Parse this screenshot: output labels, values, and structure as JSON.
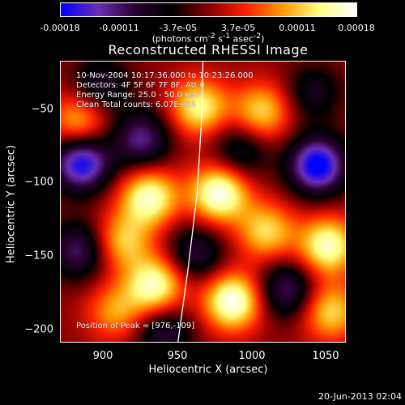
{
  "colorbar": {
    "ticks": [
      "-0.00018",
      "-0.00011",
      "-3.7e-05",
      "3.7e-05",
      "0.00011",
      "0.00018"
    ],
    "units_html": "(photons cm<sup>-2</sup> s<sup>-1</sup> asec<sup>-2</sup>)",
    "range": [
      -0.00018,
      0.00018
    ],
    "colors": [
      "#0000ff",
      "#6a2fb5",
      "#2a0030",
      "#000000",
      "#8a0000",
      "#ff2000",
      "#ff9a00",
      "#ffff80",
      "#ffffff"
    ]
  },
  "plot": {
    "title": "Reconstructed RHESSI Image",
    "info_lines": [
      "10-Nov-2004 10:17:36.000 to 10:23:26.000",
      "Detectors: 4F 5F 6F 7F 8F, Att 0",
      "Energy Range: 25.0 - 50.0 keV",
      "Clean     Total counts: 6.07E+03"
    ],
    "peak_label": "Position of Peak = [976,-109]"
  },
  "chart_data": {
    "type": "heatmap",
    "title": "Reconstructed RHESSI Image",
    "xlabel": "Heliocentric X (arcsec)",
    "ylabel": "Heliocentric Y (arcsec)",
    "xlim": [
      868,
      1062
    ],
    "ylim": [
      -211,
      -19
    ],
    "x_ticks": [
      900,
      950,
      1000,
      1050
    ],
    "x_tick_labels": [
      "900",
      "950",
      "1000",
      "1050"
    ],
    "y_ticks": [
      -50,
      -100,
      -150,
      -200
    ],
    "y_tick_labels": [
      "−50",
      "−100",
      "−150",
      "−200"
    ],
    "z_range": [
      -0.00018,
      0.00018
    ],
    "peak": [
      976,
      -109
    ],
    "limb_curve": [
      [
        948,
        -211
      ],
      [
        955,
        -160
      ],
      [
        961,
        -110
      ],
      [
        964,
        -60
      ],
      [
        965,
        -19
      ]
    ],
    "blobs": [
      {
        "x": 880,
        "y": -60,
        "v": 0.00011
      },
      {
        "x": 882,
        "y": -88,
        "v": -0.00018
      },
      {
        "x": 923,
        "y": -72,
        "v": -0.00012
      },
      {
        "x": 928,
        "y": -112,
        "v": 0.00016
      },
      {
        "x": 910,
        "y": -142,
        "v": 0.00011
      },
      {
        "x": 880,
        "y": -148,
        "v": -0.00011
      },
      {
        "x": 932,
        "y": -172,
        "v": 0.00016
      },
      {
        "x": 938,
        "y": -205,
        "v": -9e-05
      },
      {
        "x": 976,
        "y": -109,
        "v": 0.00018
      },
      {
        "x": 962,
        "y": -50,
        "v": 0.00014
      },
      {
        "x": 960,
        "y": -150,
        "v": -9e-05
      },
      {
        "x": 985,
        "y": -183,
        "v": 0.00018
      },
      {
        "x": 1005,
        "y": -53,
        "v": 0.00012
      },
      {
        "x": 1008,
        "y": -135,
        "v": 0.00012
      },
      {
        "x": 1022,
        "y": -175,
        "v": -0.00011
      },
      {
        "x": 1043,
        "y": -90,
        "v": -0.00019
      },
      {
        "x": 1050,
        "y": -145,
        "v": 0.00016
      },
      {
        "x": 1052,
        "y": -190,
        "v": 0.00012
      },
      {
        "x": 1040,
        "y": -40,
        "v": -7e-05
      },
      {
        "x": 905,
        "y": -190,
        "v": 9e-05
      },
      {
        "x": 990,
        "y": -80,
        "v": -8e-05
      },
      {
        "x": 895,
        "y": -35,
        "v": -8e-05
      }
    ]
  },
  "footer": {
    "timestamp": "20-Jun-2013 02:04"
  }
}
